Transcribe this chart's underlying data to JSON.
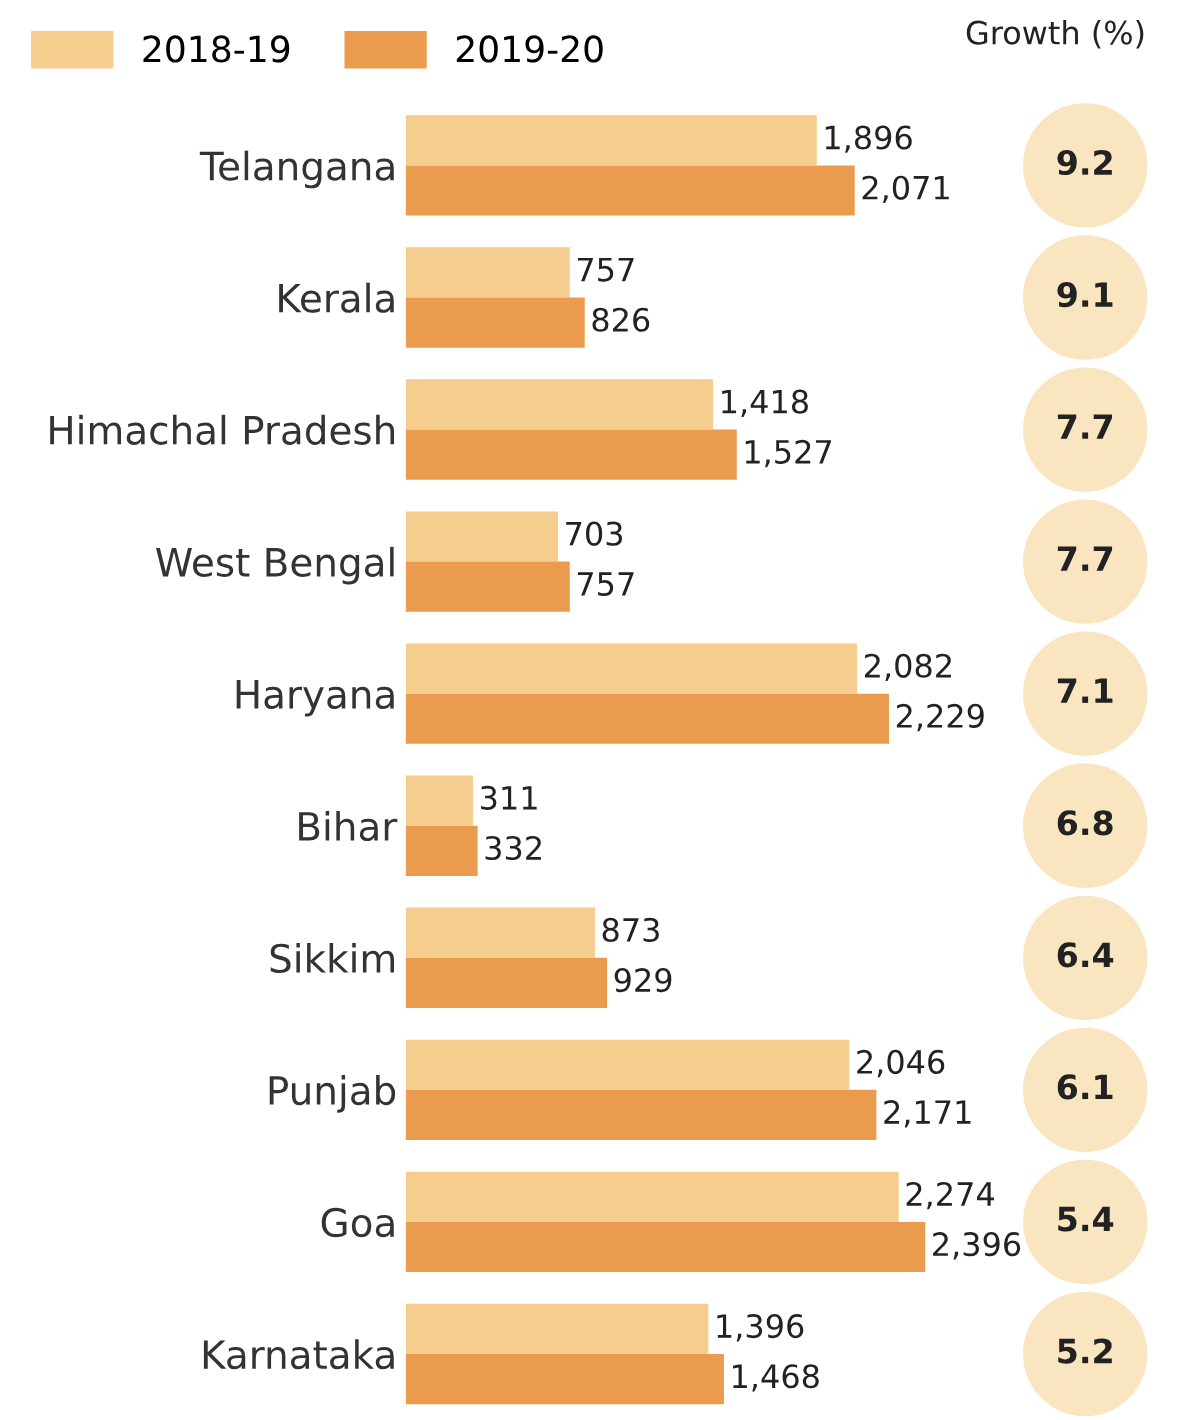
{
  "chart_data": [
    {
      "type": "bar",
      "orientation": "horizontal",
      "categories": [
        "Telangana",
        "Kerala",
        "Himachal Pradesh",
        "West Bengal",
        "Haryana",
        "Bihar",
        "Sikkim",
        "Punjab",
        "Goa",
        "Karnataka"
      ],
      "series": [
        {
          "name": "2018-19",
          "color": "#f5cd8f",
          "values": [
            1896,
            757,
            1418,
            703,
            2082,
            311,
            873,
            2046,
            2274,
            1396
          ],
          "value_labels": [
            "1,896",
            "757",
            "1,418",
            "703",
            "2,082",
            "311",
            "873",
            "2,046",
            "2,274",
            "1,396"
          ]
        },
        {
          "name": "2019-20",
          "color": "#eb9b4e",
          "values": [
            2071,
            826,
            1527,
            757,
            2229,
            332,
            929,
            2171,
            2396,
            1468
          ],
          "value_labels": [
            "2,071",
            "826",
            "1,527",
            "757",
            "2,229",
            "332",
            "929",
            "2,171",
            "2,396",
            "1,468"
          ]
        }
      ],
      "legend": "top left",
      "grid": false
    },
    {
      "type": "other",
      "title": "Growth (%)",
      "categories": [
        null,
        null,
        null,
        null,
        null,
        null,
        null,
        null,
        null,
        null
      ],
      "values": [
        9.2,
        9.1,
        7.7,
        7.7,
        7.1,
        6.8,
        6.4,
        6.1,
        5.4,
        5.2
      ],
      "color": "#f9e5bf",
      "data_labels": true
    }
  ]
}
